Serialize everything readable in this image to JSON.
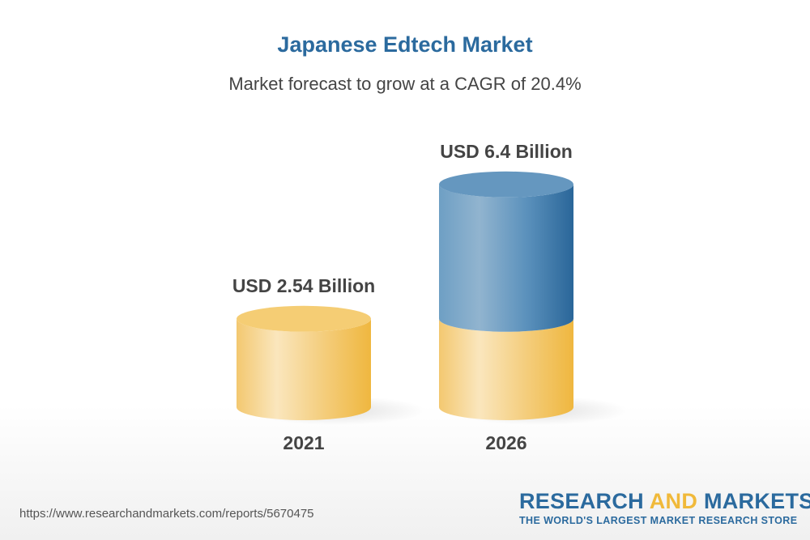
{
  "chart_data": {
    "type": "bar",
    "style": "3d-cylinder",
    "title": "Japanese Edtech Market",
    "subtitle": "Market forecast to grow at a CAGR of 20.4%",
    "categories": [
      "2021",
      "2026"
    ],
    "values": [
      2.54,
      6.4
    ],
    "data_labels": [
      "USD 2.54 Billion",
      "USD 6.4 Billion"
    ],
    "unit": "USD Billion",
    "grid": false,
    "colors": {
      "base": "#f2c15a",
      "growth": "#2f6ea0",
      "title": "#2b6a9e",
      "label": "#444444"
    }
  },
  "footer": {
    "url": "https://www.researchandmarkets.com/reports/5670475",
    "logo_word1": "RESEARCH",
    "logo_word2": "AND",
    "logo_word3": "MARKETS",
    "logo_tagline": "THE WORLD'S LARGEST MARKET RESEARCH STORE"
  }
}
